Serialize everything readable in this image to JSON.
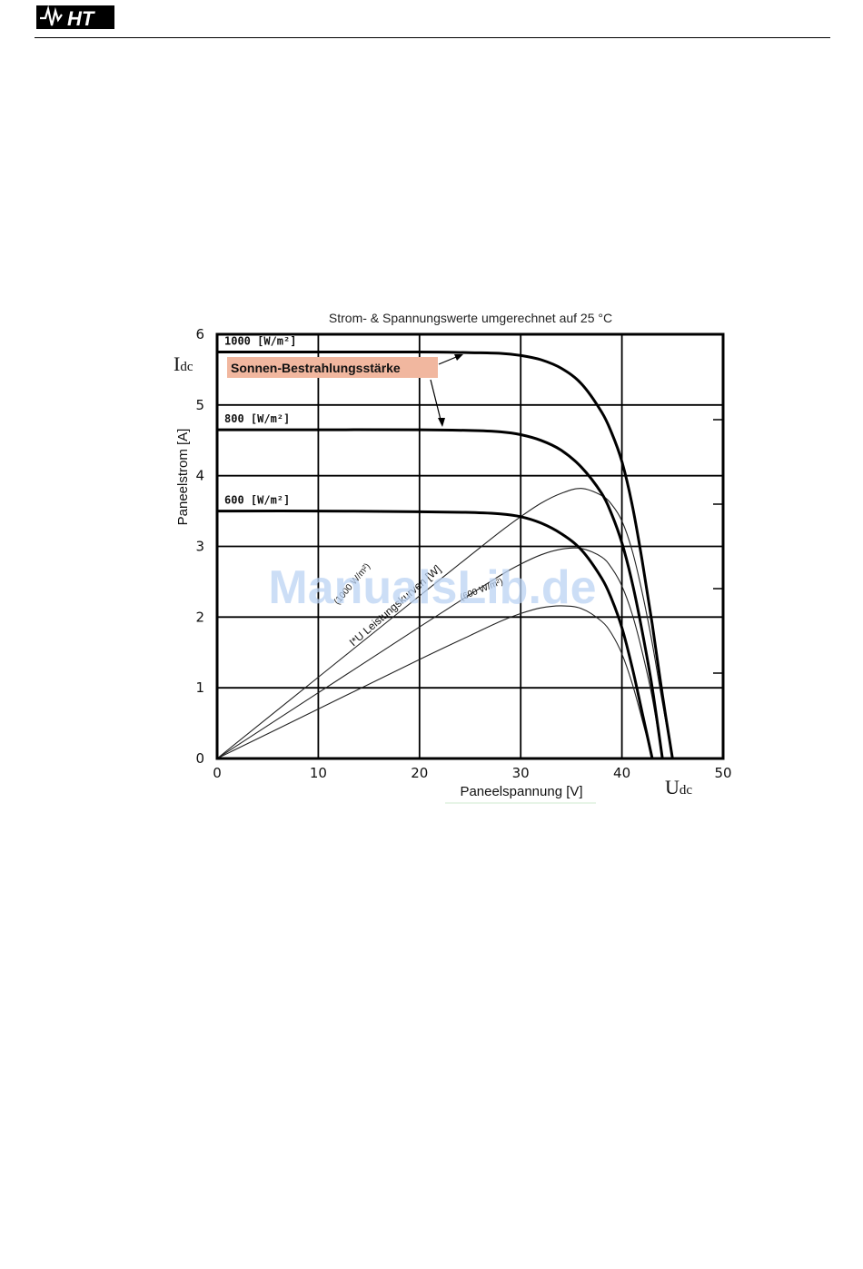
{
  "header": {
    "logo_text": "HT"
  },
  "watermark": "ManualsLib.de",
  "chart_data": {
    "type": "line",
    "title": "Strom- & Spannungswerte umgerechnet auf 25 °C",
    "xlabel": "Paneelspannung [V]",
    "ylabel": "Paneelstrom [A]",
    "x_corner_label": {
      "main": "U",
      "sub": "dc"
    },
    "y_corner_label": {
      "main": "I",
      "sub": "dc"
    },
    "xlim": [
      0,
      50
    ],
    "ylim": [
      0,
      6
    ],
    "x_ticks": [
      0,
      10,
      20,
      30,
      40,
      50
    ],
    "y_ticks": [
      0,
      1,
      2,
      3,
      4,
      5,
      6
    ],
    "grid": true,
    "iv_series": [
      {
        "name": "1000 [W/m²]",
        "x": [
          0,
          10,
          20,
          25,
          28,
          30,
          32,
          34,
          36,
          38,
          39,
          40,
          41,
          42,
          43,
          44,
          45
        ],
        "y": [
          5.75,
          5.75,
          5.75,
          5.74,
          5.73,
          5.7,
          5.64,
          5.52,
          5.3,
          4.9,
          4.6,
          4.2,
          3.6,
          2.8,
          1.9,
          0.9,
          0
        ]
      },
      {
        "name": "800 [W/m²]",
        "x": [
          0,
          10,
          20,
          25,
          28,
          30,
          32,
          34,
          36,
          38,
          39,
          40,
          41,
          42,
          43,
          44
        ],
        "y": [
          4.65,
          4.65,
          4.65,
          4.64,
          4.62,
          4.58,
          4.5,
          4.36,
          4.12,
          3.75,
          3.45,
          3.05,
          2.5,
          1.8,
          1.0,
          0
        ]
      },
      {
        "name": "600 [W/m²]",
        "x": [
          0,
          10,
          20,
          25,
          28,
          30,
          32,
          34,
          36,
          38,
          39,
          40,
          41,
          42,
          43
        ],
        "y": [
          3.5,
          3.5,
          3.49,
          3.48,
          3.46,
          3.42,
          3.33,
          3.18,
          2.95,
          2.55,
          2.25,
          1.85,
          1.3,
          0.65,
          0
        ]
      }
    ],
    "power_series": [
      {
        "label": "(1000 W/m²)",
        "x": [
          0,
          10,
          20,
          25,
          28,
          30,
          32,
          34,
          36,
          38,
          39,
          40,
          41,
          42,
          43,
          44,
          45
        ],
        "y": [
          0,
          1.15,
          2.3,
          2.87,
          3.21,
          3.42,
          3.61,
          3.75,
          3.82,
          3.72,
          3.59,
          3.36,
          2.95,
          2.35,
          1.63,
          0.79,
          0
        ]
      },
      {
        "label": "",
        "x": [
          0,
          10,
          20,
          25,
          28,
          30,
          32,
          34,
          36,
          38,
          39,
          40,
          41,
          42,
          43,
          44
        ],
        "y": [
          0,
          0.93,
          1.86,
          2.32,
          2.59,
          2.75,
          2.88,
          2.96,
          2.97,
          2.85,
          2.69,
          2.44,
          2.05,
          1.51,
          0.86,
          0
        ]
      },
      {
        "label": "(600 W/m²)",
        "x": [
          0,
          10,
          20,
          25,
          28,
          30,
          32,
          34,
          36,
          38,
          39,
          40,
          41,
          42,
          43
        ],
        "y": [
          0,
          0.7,
          1.4,
          1.74,
          1.94,
          2.05,
          2.13,
          2.16,
          2.12,
          1.94,
          1.76,
          1.48,
          1.07,
          0.55,
          0
        ]
      }
    ],
    "annotations": {
      "irradiance_badge": "Sonnen-Bestrahlungsstärke",
      "power_curves_label": "I*U   Leistungskurven [W]"
    }
  }
}
